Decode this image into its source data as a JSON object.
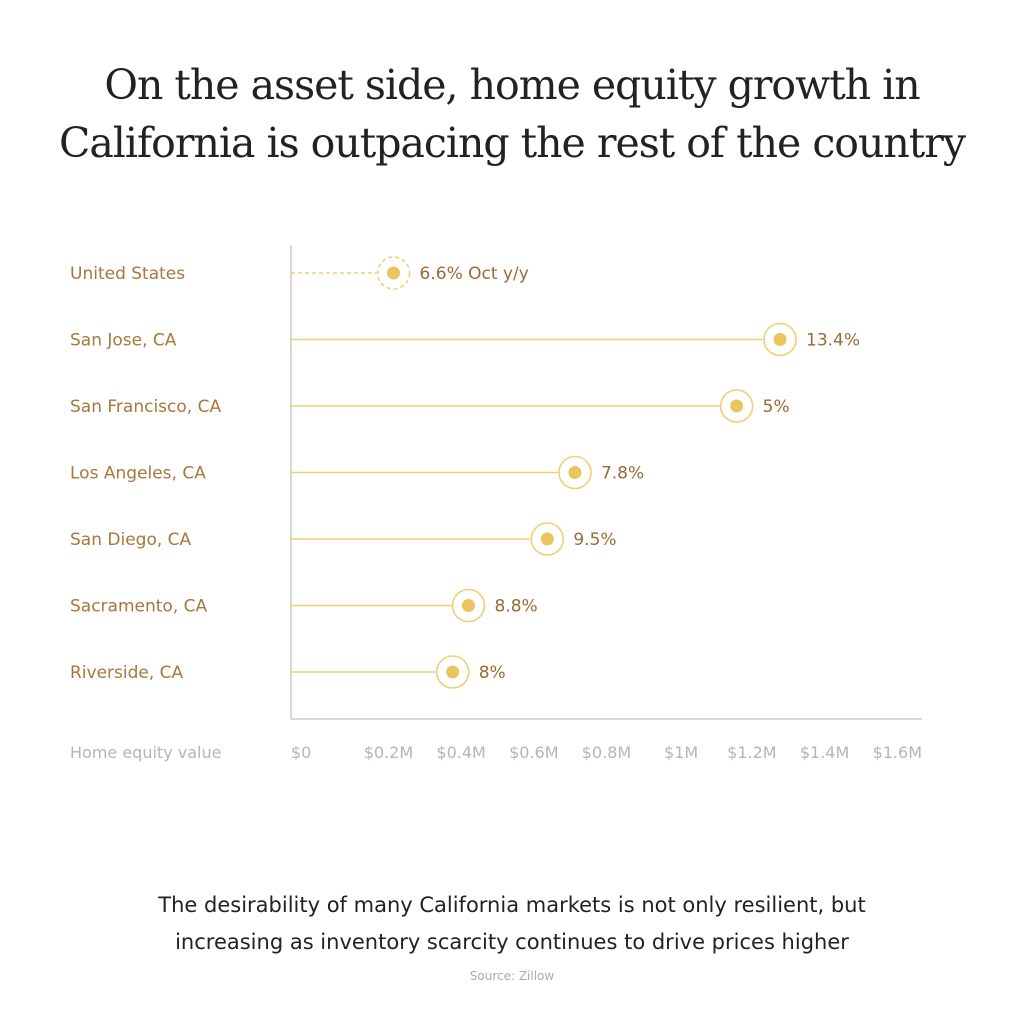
{
  "title_lines": [
    "On the asset side, home equity growth in",
    "California is outpacing the rest of the country"
  ],
  "subtitle_lines": [
    "The desirability of many California markets is not only resilient, but",
    "increasing as inventory scarcity continues to drive prices higher"
  ],
  "source": "Source: Zillow",
  "colors": {
    "line": "#f0cf74",
    "dot": "#e9c45f",
    "label": "#a8773a",
    "axis": "#cccccc"
  },
  "chart_data": {
    "type": "lollipop",
    "xlabel": "Home equity value",
    "xlim": [
      0,
      1.6
    ],
    "x_unit": "$M",
    "x_ticks": [
      "$0",
      "$0.2M",
      "$0.4M",
      "$0.6M",
      "$0.8M",
      "$1M",
      "$1.2M",
      "$1.4M",
      "$1.6M"
    ],
    "grid": false,
    "categories": [
      "United States",
      "San Jose, CA",
      "San Francisco, CA",
      "Los Angeles, CA",
      "San Diego, CA",
      "Sacramento, CA",
      "Riverside, CA"
    ],
    "values": [
      0.26,
      1.24,
      1.13,
      0.72,
      0.65,
      0.45,
      0.41
    ],
    "data_labels": [
      "6.6% Oct y/y",
      "13.4%",
      "5%",
      "7.8%",
      "9.5%",
      "8.8%",
      "8%"
    ],
    "dashed": [
      true,
      false,
      false,
      false,
      false,
      false,
      false
    ]
  }
}
